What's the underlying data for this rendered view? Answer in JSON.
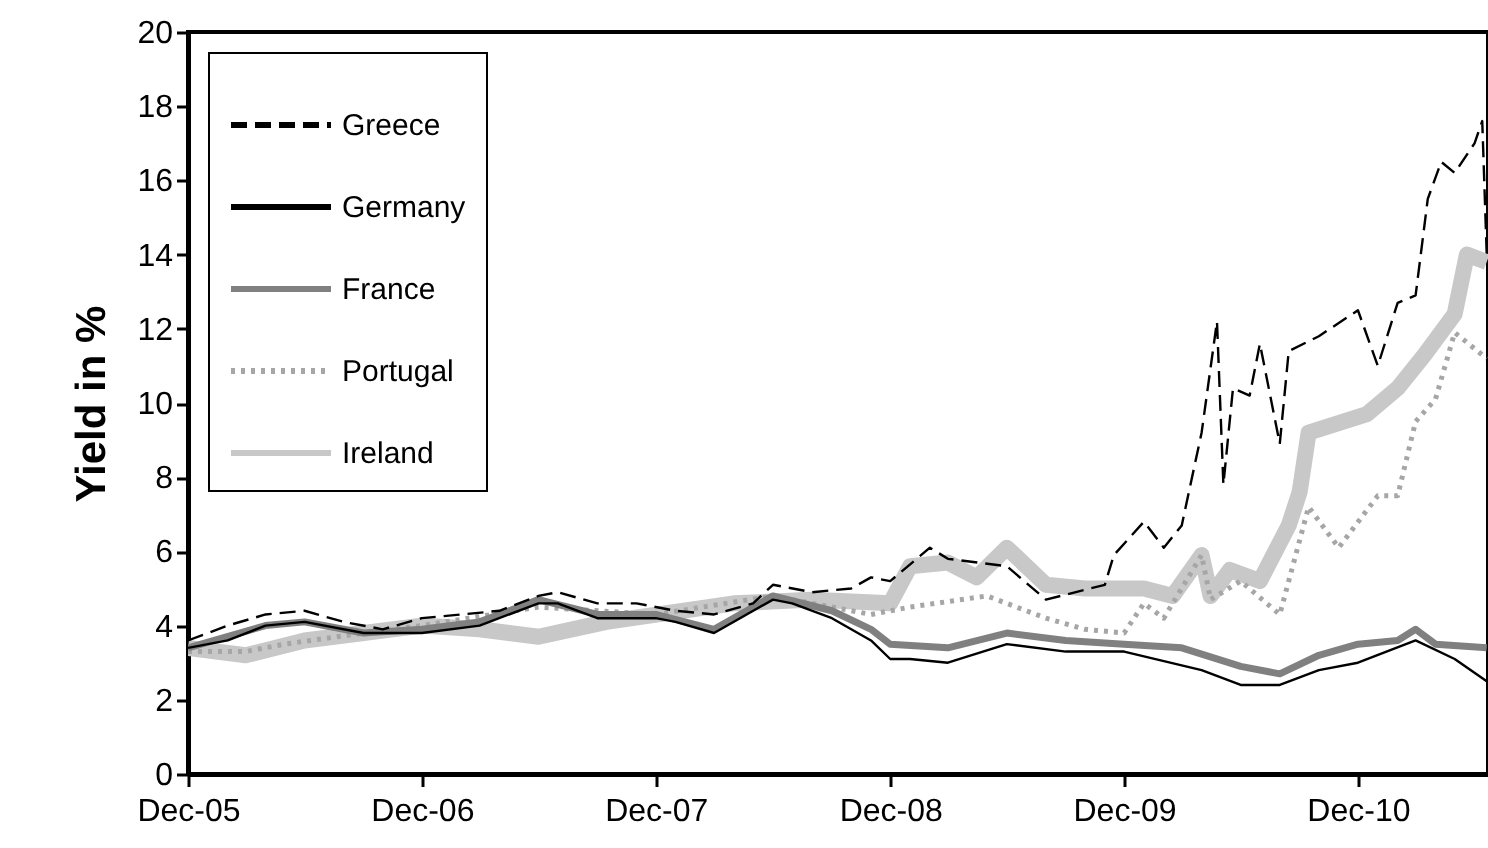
{
  "chart_data": {
    "type": "line",
    "ylabel": "Yield in %",
    "ylim": [
      0,
      20
    ],
    "yticks": [
      0,
      2,
      4,
      6,
      8,
      10,
      12,
      14,
      16,
      18,
      20
    ],
    "xlim": [
      "2005-12-01",
      "2011-06-22"
    ],
    "xticks": [
      {
        "value": "2005-12-01",
        "label": "Dec-05"
      },
      {
        "value": "2006-12-01",
        "label": "Dec-06"
      },
      {
        "value": "2007-12-01",
        "label": "Dec-07"
      },
      {
        "value": "2008-12-01",
        "label": "Dec-08"
      },
      {
        "value": "2009-12-01",
        "label": "Dec-09"
      },
      {
        "value": "2010-12-01",
        "label": "Dec-10"
      }
    ],
    "grid": false,
    "legend": "top left",
    "series": [
      {
        "name": "Greece",
        "color": "#000000",
        "line_style": "dashed",
        "x": [
          "2005-12-01",
          "2006-02-01",
          "2006-04-01",
          "2006-06-01",
          "2006-08-01",
          "2006-10-01",
          "2006-12-01",
          "2007-02-01",
          "2007-04-01",
          "2007-06-01",
          "2007-07-01",
          "2007-09-01",
          "2007-11-01",
          "2008-01-01",
          "2008-03-01",
          "2008-05-01",
          "2008-06-01",
          "2008-08-01",
          "2008-10-01",
          "2008-11-01",
          "2008-12-01",
          "2009-02-01",
          "2009-03-01",
          "2009-06-01",
          "2009-08-01",
          "2009-11-01",
          "2009-11-15",
          "2010-01-01",
          "2010-02-01",
          "2010-03-01",
          "2010-04-01",
          "2010-04-25",
          "2010-05-05",
          "2010-05-20",
          "2010-06-15",
          "2010-07-01",
          "2010-08-01",
          "2010-08-15",
          "2010-10-01",
          "2010-12-01",
          "2011-01-01",
          "2011-02-01",
          "2011-03-01",
          "2011-03-20",
          "2011-04-10",
          "2011-05-01",
          "2011-06-01",
          "2011-06-13",
          "2011-06-20"
        ],
        "values": [
          3.6,
          4.0,
          4.3,
          4.4,
          4.1,
          3.9,
          4.2,
          4.3,
          4.4,
          4.8,
          4.9,
          4.6,
          4.6,
          4.4,
          4.3,
          4.6,
          5.1,
          4.9,
          5.0,
          5.3,
          5.2,
          6.1,
          5.8,
          5.6,
          4.7,
          5.1,
          5.9,
          6.8,
          6.1,
          6.7,
          9.2,
          12.2,
          7.8,
          10.4,
          10.2,
          11.6,
          8.9,
          11.4,
          11.8,
          12.5,
          11.0,
          12.7,
          12.9,
          15.5,
          16.5,
          16.2,
          17.0,
          17.6,
          14.0
        ]
      },
      {
        "name": "Germany",
        "color": "#000000",
        "line_style": "solid",
        "x": [
          "2005-12-01",
          "2006-02-01",
          "2006-04-01",
          "2006-06-01",
          "2006-09-01",
          "2006-12-01",
          "2007-03-01",
          "2007-06-01",
          "2007-07-01",
          "2007-09-01",
          "2007-12-01",
          "2008-01-01",
          "2008-03-01",
          "2008-06-01",
          "2008-07-01",
          "2008-09-01",
          "2008-11-01",
          "2008-12-01",
          "2009-01-01",
          "2009-03-01",
          "2009-06-01",
          "2009-09-01",
          "2009-12-01",
          "2010-04-01",
          "2010-06-01",
          "2010-08-01",
          "2010-10-01",
          "2010-12-01",
          "2011-03-01",
          "2011-05-01",
          "2011-06-20"
        ],
        "values": [
          3.4,
          3.6,
          4.0,
          4.1,
          3.8,
          3.8,
          4.0,
          4.6,
          4.6,
          4.2,
          4.2,
          4.1,
          3.8,
          4.7,
          4.6,
          4.2,
          3.6,
          3.1,
          3.1,
          3.0,
          3.5,
          3.3,
          3.3,
          2.8,
          2.4,
          2.4,
          2.8,
          3.0,
          3.6,
          3.1,
          2.5
        ]
      },
      {
        "name": "France",
        "color": "#808080",
        "line_style": "solid",
        "x": [
          "2005-12-01",
          "2006-04-01",
          "2006-06-01",
          "2006-09-01",
          "2006-12-01",
          "2007-03-01",
          "2007-06-01",
          "2007-09-01",
          "2007-12-01",
          "2008-03-01",
          "2008-06-01",
          "2008-09-01",
          "2008-11-01",
          "2008-12-01",
          "2009-03-01",
          "2009-06-01",
          "2009-09-01",
          "2009-12-01",
          "2010-03-01",
          "2010-06-01",
          "2010-08-01",
          "2010-10-01",
          "2010-12-01",
          "2011-02-01",
          "2011-03-01",
          "2011-04-01",
          "2011-06-20"
        ],
        "values": [
          3.4,
          4.0,
          4.1,
          3.8,
          3.9,
          4.1,
          4.7,
          4.3,
          4.3,
          3.9,
          4.8,
          4.4,
          3.9,
          3.5,
          3.4,
          3.8,
          3.6,
          3.5,
          3.4,
          2.9,
          2.7,
          3.2,
          3.5,
          3.6,
          3.9,
          3.5,
          3.4
        ]
      },
      {
        "name": "Portugal",
        "color": "#a6a6a6",
        "line_style": "dotted",
        "x": [
          "2005-12-01",
          "2006-03-01",
          "2006-05-01",
          "2006-09-01",
          "2006-12-01",
          "2007-06-01",
          "2007-12-01",
          "2008-06-01",
          "2008-11-01",
          "2009-01-01",
          "2009-05-01",
          "2009-08-01",
          "2009-10-01",
          "2009-12-01",
          "2010-01-01",
          "2010-02-01",
          "2010-04-01",
          "2010-04-15",
          "2010-06-01",
          "2010-08-01",
          "2010-09-15",
          "2010-11-01",
          "2011-01-01",
          "2011-02-01",
          "2011-03-01",
          "2011-04-01",
          "2011-05-01",
          "2011-06-20"
        ],
        "values": [
          3.3,
          3.3,
          3.5,
          3.8,
          4.0,
          4.5,
          4.3,
          4.8,
          4.3,
          4.5,
          4.8,
          4.2,
          3.9,
          3.8,
          4.6,
          4.2,
          5.9,
          4.7,
          5.2,
          4.3,
          7.2,
          6.1,
          7.5,
          7.5,
          9.5,
          10.1,
          11.9,
          11.2
        ]
      },
      {
        "name": "Ireland",
        "color": "#c8c8c8",
        "line_style": "solid",
        "x": [
          "2005-12-01",
          "2006-03-01",
          "2006-06-01",
          "2006-09-01",
          "2006-12-01",
          "2007-03-01",
          "2007-06-01",
          "2007-09-15",
          "2008-04-01",
          "2008-08-01",
          "2008-12-01",
          "2009-01-01",
          "2009-03-01",
          "2009-04-15",
          "2009-06-01",
          "2009-08-01",
          "2009-10-01",
          "2010-01-01",
          "2010-02-15",
          "2010-04-01",
          "2010-04-15",
          "2010-05-15",
          "2010-07-01",
          "2010-08-15",
          "2010-09-01",
          "2010-09-15",
          "2010-12-15",
          "2011-02-01",
          "2011-03-15",
          "2011-05-01",
          "2011-05-20",
          "2011-06-20"
        ],
        "values": [
          3.4,
          3.2,
          3.6,
          3.8,
          4.0,
          3.9,
          3.7,
          4.1,
          4.6,
          4.7,
          4.6,
          5.6,
          5.7,
          5.3,
          6.1,
          5.1,
          5.0,
          5.0,
          4.8,
          5.9,
          4.8,
          5.5,
          5.2,
          6.7,
          7.6,
          9.2,
          9.7,
          10.4,
          11.3,
          12.4,
          14.0,
          13.8
        ]
      }
    ]
  }
}
